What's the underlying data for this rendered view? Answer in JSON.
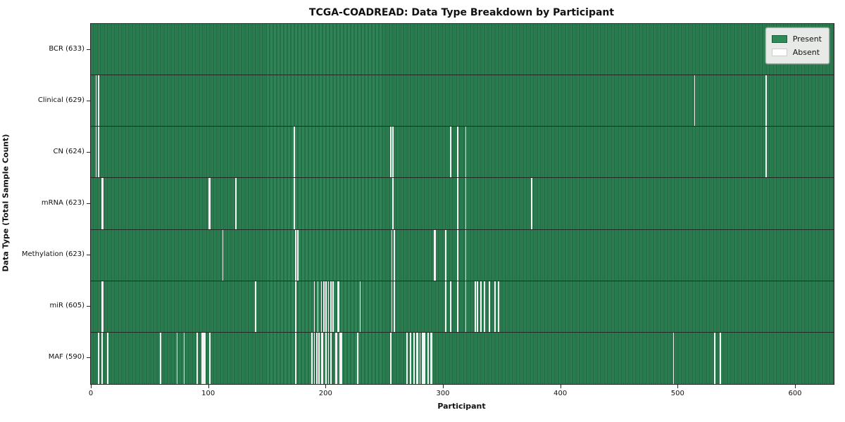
{
  "title": "TCGA-COADREAD: Data Type Breakdown by Participant",
  "xlabel": "Participant",
  "ylabel": "Data Type (Total Sample Count)",
  "legend": {
    "present_label": "Present",
    "absent_label": "Absent"
  },
  "colors": {
    "present": "#2e8b57",
    "present_stripe_light": "#2e8456",
    "present_stripe_dark": "#1e5c3b",
    "absent": "#f2f3f2",
    "row_divider": "#1f2b22",
    "axis": "#262626",
    "legend_bg": "#e7eae7",
    "legend_border": "#a3a8a3"
  },
  "chart_data": {
    "type": "heatmap",
    "title": "TCGA-COADREAD: Data Type Breakdown by Participant",
    "xlabel": "Participant",
    "ylabel": "Data Type (Total Sample Count)",
    "legend_entries": [
      "Present",
      "Absent"
    ],
    "legend_position": "upper right",
    "x_axis": {
      "range": [
        0,
        633
      ],
      "ticks": [
        0,
        100,
        200,
        300,
        400,
        500,
        600
      ]
    },
    "rows": [
      {
        "label": "BCR (633)",
        "data_type": "BCR",
        "present_count": 633,
        "total": 633,
        "absent_participants": []
      },
      {
        "label": "Clinical (629)",
        "data_type": "Clinical",
        "present_count": 629,
        "total": 633,
        "absent_participants": [
          4,
          6,
          514,
          575
        ]
      },
      {
        "label": "CN (624)",
        "data_type": "CN",
        "present_count": 624,
        "total": 633,
        "absent_participants": [
          4,
          6,
          173,
          255,
          257,
          306,
          312,
          319,
          575
        ]
      },
      {
        "label": "mRNA (623)",
        "data_type": "mRNA",
        "present_count": 623,
        "total": 633,
        "absent_participants": [
          9,
          10,
          100,
          101,
          123,
          173,
          257,
          312,
          319,
          375
        ]
      },
      {
        "label": "Methylation (623)",
        "data_type": "Methylation",
        "present_count": 623,
        "total": 633,
        "absent_participants": [
          112,
          174,
          176,
          256,
          258,
          292,
          293,
          302,
          312,
          319
        ]
      },
      {
        "label": "miR (605)",
        "data_type": "miR",
        "present_count": 605,
        "total": 633,
        "absent_participants": [
          9,
          10,
          140,
          174,
          190,
          193,
          196,
          198,
          200,
          202,
          204,
          206,
          210,
          211,
          229,
          256,
          258,
          302,
          306,
          312,
          319,
          327,
          329,
          332,
          335,
          339,
          344,
          347
        ]
      },
      {
        "label": "MAF (590)",
        "data_type": "MAF",
        "present_count": 590,
        "total": 633,
        "absent_participants": [
          6,
          9,
          14,
          59,
          73,
          79,
          90,
          94,
          95,
          96,
          97,
          101,
          174,
          188,
          190,
          192,
          194,
          196,
          197,
          200,
          202,
          204,
          208,
          209,
          212,
          213,
          227,
          255,
          269,
          272,
          275,
          277,
          278,
          280,
          282,
          283,
          284,
          287,
          289,
          290,
          496,
          531,
          536
        ]
      }
    ]
  }
}
